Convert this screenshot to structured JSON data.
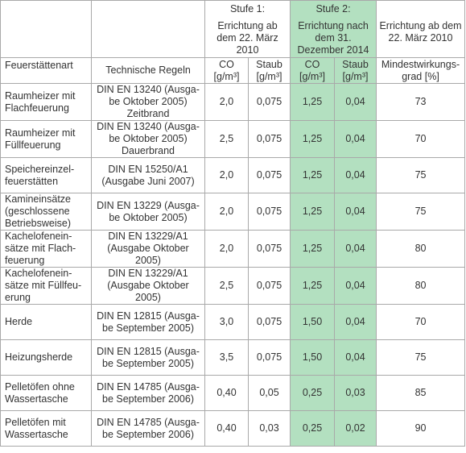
{
  "header": {
    "stage1": {
      "title": "Stufe 1:",
      "subtitle": "Errichtung ab dem 22. März 2010"
    },
    "stage2": {
      "title": "Stufe 2:",
      "subtitle": "Errichtung nach dem 31. Dezember 2014"
    },
    "efficiency_top": "Errichtung ab dem 22. März 2010",
    "col_type": "Feuerstättenart",
    "col_rules": "Technische Regeln",
    "col_co": "CO [g/m³]",
    "col_dust": "Staub [g/m³]",
    "col_efficiency": "Mindestwirkungs-grad [%]"
  },
  "rows": [
    {
      "type": "Raumheizer mit Flachfeuerung",
      "rules": "DIN EN 13240 (Ausga-be Oktober 2005) Zeitbrand",
      "co1": "2,0",
      "dust1": "0,075",
      "co2": "1,25",
      "dust2": "0,04",
      "eff": "73"
    },
    {
      "type": "Raumheizer mit Füllfeuerung",
      "rules": "DIN EN 13240 (Ausga-be Oktober 2005) Dauerbrand",
      "co1": "2,5",
      "dust1": "0,075",
      "co2": "1,25",
      "dust2": "0,04",
      "eff": "70"
    },
    {
      "type": "Speichereinzel-feuerstätten",
      "rules": "DIN EN 15250/A1 (Ausgabe Juni 2007)",
      "co1": "2,0",
      "dust1": "0,075",
      "co2": "1,25",
      "dust2": "0,04",
      "eff": "75"
    },
    {
      "type": "Kamineinsätze (geschlossene Betriebsweise)",
      "rules": "DIN EN 13229 (Ausga-be Oktober 2005)",
      "co1": "2,0",
      "dust1": "0,075",
      "co2": "1,25",
      "dust2": "0,04",
      "eff": "75"
    },
    {
      "type": "Kachelofenein-sätze mit Flach-feuerung",
      "rules": "DIN EN 13229/A1 (Ausgabe Oktober 2005)",
      "co1": "2,0",
      "dust1": "0,075",
      "co2": "1,25",
      "dust2": "0,04",
      "eff": "80"
    },
    {
      "type": "Kachelofenein-sätze mit Füllfeu-erung",
      "rules": "DIN EN 13229/A1 (Ausgabe Oktober 2005)",
      "co1": "2,5",
      "dust1": "0,075",
      "co2": "1,25",
      "dust2": "0,04",
      "eff": "80"
    },
    {
      "type": "Herde",
      "rules": "DIN EN 12815 (Ausga-be September 2005)",
      "co1": "3,0",
      "dust1": "0,075",
      "co2": "1,50",
      "dust2": "0,04",
      "eff": "70"
    },
    {
      "type": "Heizungsherde",
      "rules": "DIN EN 12815 (Ausga-be September 2005)",
      "co1": "3,5",
      "dust1": "0,075",
      "co2": "1,50",
      "dust2": "0,04",
      "eff": "75"
    },
    {
      "type": "Pelletöfen ohne Wassertasche",
      "rules": "DIN EN 14785 (Ausga-be September 2006)",
      "co1": "0,40",
      "dust1": "0,05",
      "co2": "0,25",
      "dust2": "0,03",
      "eff": "85"
    },
    {
      "type": "Pelletöfen mit Wassertasche",
      "rules": "DIN EN 14785 (Ausga-be September 2006)",
      "co1": "0,40",
      "dust1": "0,03",
      "co2": "0,25",
      "dust2": "0,02",
      "eff": "90"
    }
  ],
  "colors": {
    "stage2_highlight": "#b3e0c0",
    "border": "#a9a9a9",
    "text": "#333333"
  }
}
